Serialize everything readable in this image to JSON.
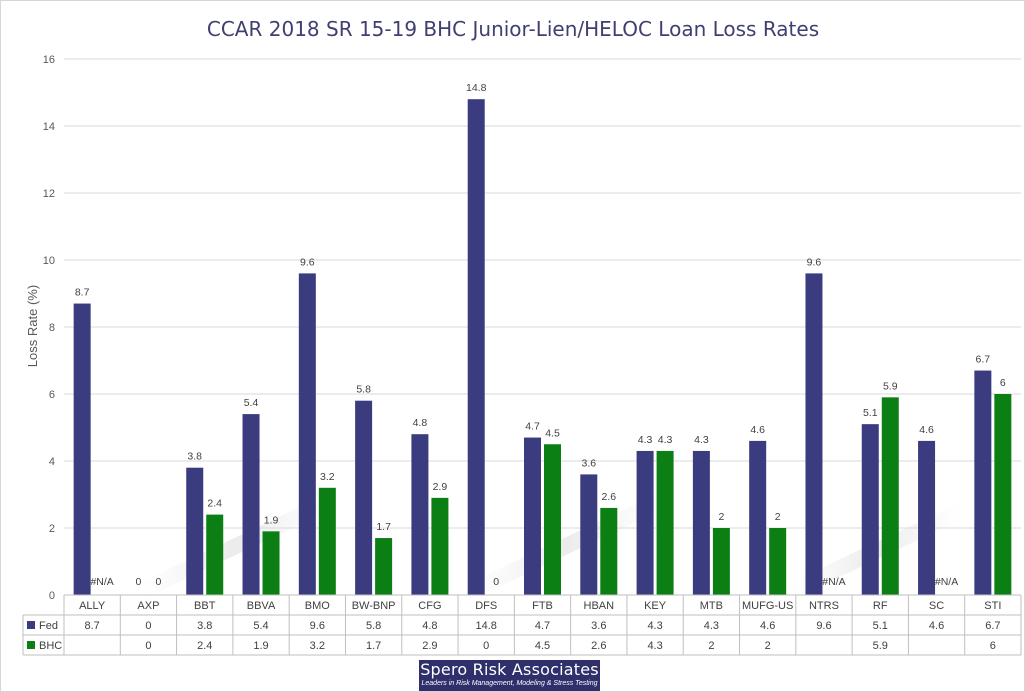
{
  "chart_data": {
    "type": "bar",
    "title": "CCAR 2018 SR 15-19 BHC Junior-Lien/HELOC Loan Loss Rates",
    "ylabel": "Loss Rate (%)",
    "xlabel": "",
    "ylim": [
      0,
      16
    ],
    "yticks": [
      0,
      2,
      4,
      6,
      8,
      10,
      12,
      14,
      16
    ],
    "grid": true,
    "legend_placement": "data-table",
    "categories": [
      "ALLY",
      "AXP",
      "BBT",
      "BBVA",
      "BMO",
      "BW-BNP",
      "CFG",
      "DFS",
      "FTB",
      "HBAN",
      "KEY",
      "MTB",
      "MUFG-US",
      "NTRS",
      "RF",
      "SC",
      "STI"
    ],
    "series": [
      {
        "name": "Fed",
        "color": "#3b3b80",
        "values": [
          8.7,
          0,
          3.8,
          5.4,
          9.6,
          5.8,
          4.8,
          14.8,
          4.7,
          3.6,
          4.3,
          4.3,
          4.6,
          9.6,
          5.1,
          4.6,
          6.7
        ],
        "labels": [
          "8.7",
          "0",
          "3.8",
          "5.4",
          "9.6",
          "5.8",
          "4.8",
          "14.8",
          "4.7",
          "3.6",
          "4.3",
          "4.3",
          "4.6",
          "9.6",
          "5.1",
          "4.6",
          "6.7"
        ],
        "table": [
          "8.7",
          "0",
          "3.8",
          "5.4",
          "9.6",
          "5.8",
          "4.8",
          "14.8",
          "4.7",
          "3.6",
          "4.3",
          "4.3",
          "4.6",
          "9.6",
          "5.1",
          "4.6",
          "6.7"
        ]
      },
      {
        "name": "BHC",
        "color": "#0b7f14",
        "values": [
          null,
          0,
          2.4,
          1.9,
          3.2,
          1.7,
          2.9,
          0,
          4.5,
          2.6,
          4.3,
          2,
          2,
          null,
          5.9,
          null,
          6
        ],
        "labels": [
          "#N/A",
          "0",
          "2.4",
          "1.9",
          "3.2",
          "1.7",
          "2.9",
          "0",
          "4.5",
          "2.6",
          "4.3",
          "2",
          "2",
          "#N/A",
          "5.9",
          "#N/A",
          "6"
        ],
        "table": [
          "",
          "0",
          "2.4",
          "1.9",
          "3.2",
          "1.7",
          "2.9",
          "0",
          "4.5",
          "2.6",
          "4.3",
          "2",
          "2",
          "",
          "5.9",
          "",
          "6"
        ]
      }
    ]
  },
  "logo": {
    "name": "Spero Risk Associates",
    "tagline": "Leaders in Risk Management, Modeling & Stress Testing"
  }
}
